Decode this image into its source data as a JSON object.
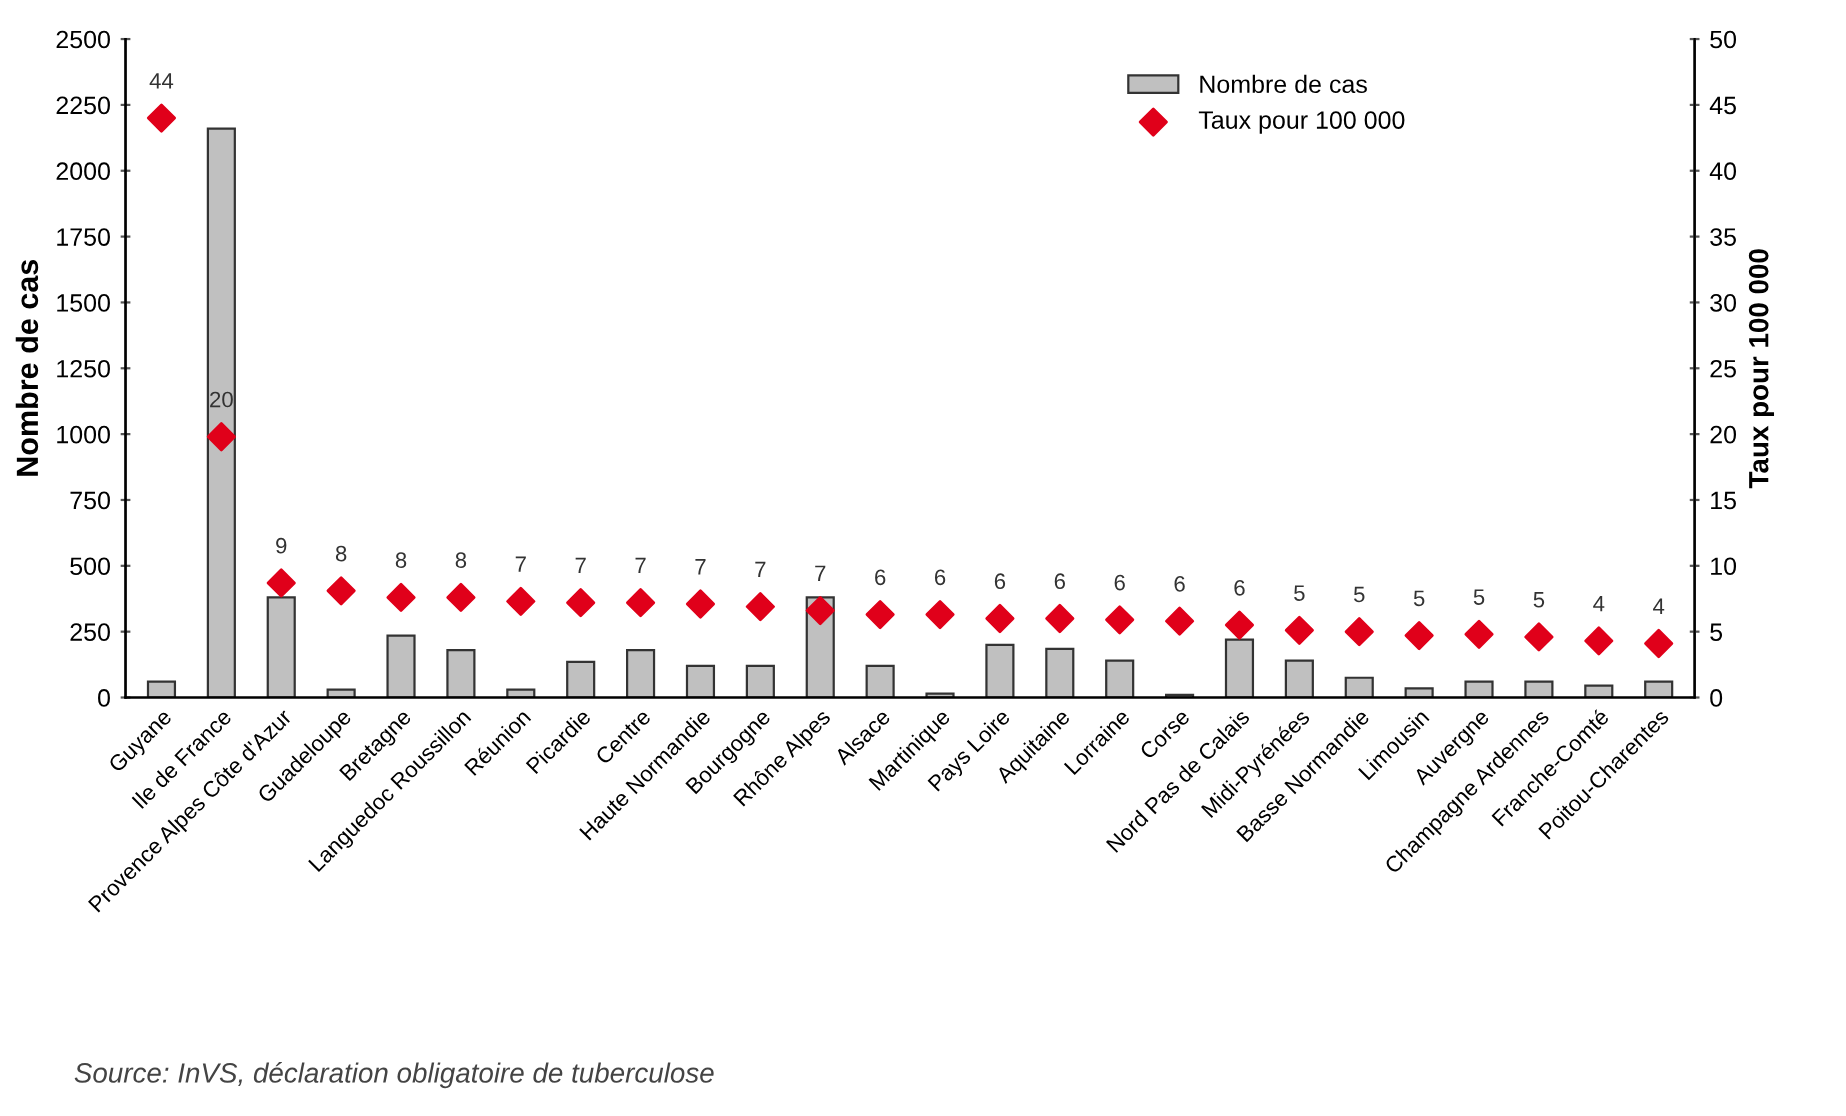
{
  "chart_data": {
    "type": "bar",
    "categories": [
      "Guyane",
      "Ile de France",
      "Provence Alpes Côte d'Azur",
      "Guadeloupe",
      "Bretagne",
      "Languedoc Roussillon",
      "Réunion",
      "Picardie",
      "Centre",
      "Haute Normandie",
      "Bourgogne",
      "Rhône Alpes",
      "Alsace",
      "Martinique",
      "Pays Loire",
      "Aquitaine",
      "Lorraine",
      "Corse",
      "Nord Pas de Calais",
      "Midi-Pyrénées",
      "Basse Normandie",
      "Limousin",
      "Auvergne",
      "Champagne Ardennes",
      "Franche-Comté",
      "Poitou-Charentes"
    ],
    "series": [
      {
        "name": "Nombre de cas",
        "color": "#c0c0c0",
        "values": [
          60,
          2160,
          380,
          30,
          235,
          180,
          30,
          135,
          180,
          120,
          120,
          380,
          120,
          15,
          200,
          185,
          140,
          10,
          220,
          140,
          75,
          35,
          60,
          60,
          45,
          60
        ]
      },
      {
        "name": "Taux pour 100 000",
        "type": "scatter",
        "axis": "y2",
        "color": "#e0001a",
        "values": [
          44,
          19.8,
          8.7,
          8.1,
          7.6,
          7.6,
          7.3,
          7.2,
          7.2,
          7.1,
          6.9,
          6.6,
          6.3,
          6.3,
          6.0,
          6.0,
          5.9,
          5.8,
          5.5,
          5.1,
          5.0,
          4.7,
          4.8,
          4.6,
          4.3,
          4.1
        ],
        "value_labels": [
          "44",
          "20",
          "9",
          "8",
          "8",
          "8",
          "7",
          "7",
          "7",
          "7",
          "7",
          "7",
          "6",
          "6",
          "6",
          "6",
          "6",
          "6",
          "6",
          "5",
          "5",
          "5",
          "5",
          "5",
          "4",
          "4"
        ]
      }
    ],
    "ylabel": "Nombre de cas",
    "y2label": "Taux pour 100 000",
    "ylim": [
      0,
      2500
    ],
    "yticks": [
      0,
      250,
      500,
      750,
      1000,
      1250,
      1500,
      1750,
      2000,
      2250,
      2500
    ],
    "y2lim": [
      0,
      50
    ],
    "y2ticks": [
      0,
      5,
      10,
      15,
      20,
      25,
      30,
      35,
      40,
      45,
      50
    ],
    "marker": "diamond",
    "legend": "top right",
    "grid": false,
    "annotations": [
      "Source: InVS, déclaration obligatoire de tuberculose"
    ]
  }
}
